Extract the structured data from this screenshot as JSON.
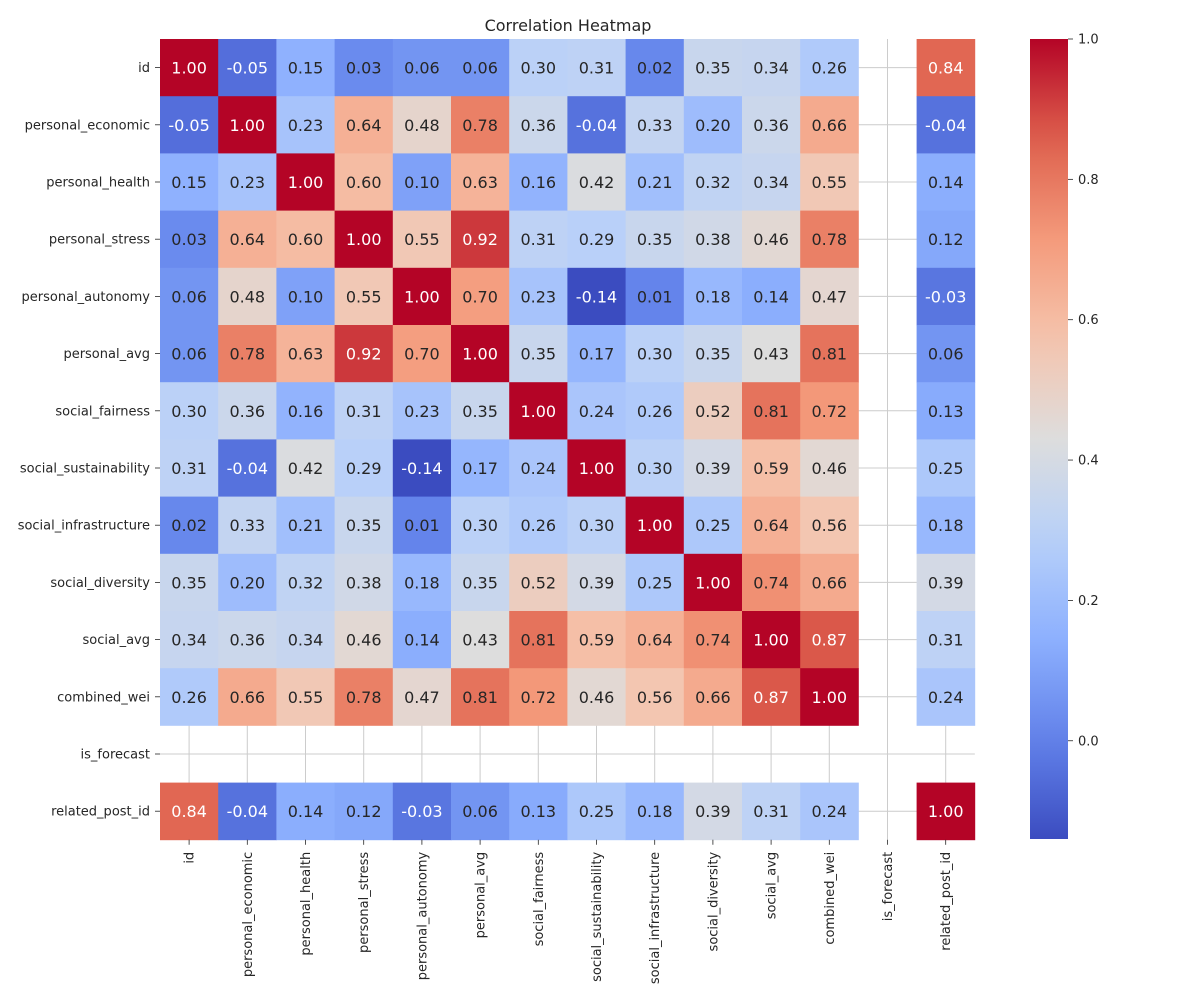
{
  "chart_data": {
    "type": "heatmap",
    "title": "Correlation Heatmap",
    "xlabel": "",
    "ylabel": "",
    "colormap": "coolwarm",
    "vmin": -0.14,
    "vmax": 1.0,
    "variables": [
      "id",
      "personal_economic",
      "personal_health",
      "personal_stress",
      "personal_autonomy",
      "personal_avg",
      "social_fairness",
      "social_sustainability",
      "social_infrastructure",
      "social_diversity",
      "social_avg",
      "combined_wei",
      "is_forecast",
      "related_post_id"
    ],
    "matrix": [
      [
        1.0,
        -0.05,
        0.15,
        0.03,
        0.06,
        0.06,
        0.3,
        0.31,
        0.02,
        0.35,
        0.34,
        0.26,
        null,
        0.84
      ],
      [
        -0.05,
        1.0,
        0.23,
        0.64,
        0.48,
        0.78,
        0.36,
        -0.04,
        0.33,
        0.2,
        0.36,
        0.66,
        null,
        -0.04
      ],
      [
        0.15,
        0.23,
        1.0,
        0.6,
        0.1,
        0.63,
        0.16,
        0.42,
        0.21,
        0.32,
        0.34,
        0.55,
        null,
        0.14
      ],
      [
        0.03,
        0.64,
        0.6,
        1.0,
        0.55,
        0.92,
        0.31,
        0.29,
        0.35,
        0.38,
        0.46,
        0.78,
        null,
        0.12
      ],
      [
        0.06,
        0.48,
        0.1,
        0.55,
        1.0,
        0.7,
        0.23,
        -0.14,
        0.01,
        0.18,
        0.14,
        0.47,
        null,
        -0.03
      ],
      [
        0.06,
        0.78,
        0.63,
        0.92,
        0.7,
        1.0,
        0.35,
        0.17,
        0.3,
        0.35,
        0.43,
        0.81,
        null,
        0.06
      ],
      [
        0.3,
        0.36,
        0.16,
        0.31,
        0.23,
        0.35,
        1.0,
        0.24,
        0.26,
        0.52,
        0.81,
        0.72,
        null,
        0.13
      ],
      [
        0.31,
        -0.04,
        0.42,
        0.29,
        -0.14,
        0.17,
        0.24,
        1.0,
        0.3,
        0.39,
        0.59,
        0.46,
        null,
        0.25
      ],
      [
        0.02,
        0.33,
        0.21,
        0.35,
        0.01,
        0.3,
        0.26,
        0.3,
        1.0,
        0.25,
        0.64,
        0.56,
        null,
        0.18
      ],
      [
        0.35,
        0.2,
        0.32,
        0.38,
        0.18,
        0.35,
        0.52,
        0.39,
        0.25,
        1.0,
        0.74,
        0.66,
        null,
        0.39
      ],
      [
        0.34,
        0.36,
        0.34,
        0.46,
        0.14,
        0.43,
        0.81,
        0.59,
        0.64,
        0.74,
        1.0,
        0.87,
        null,
        0.31
      ],
      [
        0.26,
        0.66,
        0.55,
        0.78,
        0.47,
        0.81,
        0.72,
        0.46,
        0.56,
        0.66,
        0.87,
        1.0,
        null,
        0.24
      ],
      [
        null,
        null,
        null,
        null,
        null,
        null,
        null,
        null,
        null,
        null,
        null,
        null,
        null,
        null
      ],
      [
        0.84,
        -0.04,
        0.14,
        0.12,
        -0.03,
        0.06,
        0.13,
        0.25,
        0.18,
        0.39,
        0.31,
        0.24,
        null,
        1.0
      ]
    ],
    "colorbar": {
      "ticks": [
        0.0,
        0.2,
        0.4,
        0.6,
        0.8,
        1.0
      ],
      "tick_labels": [
        "0.0",
        "0.2",
        "0.4",
        "0.6",
        "0.8",
        "1.0"
      ]
    },
    "grid": true,
    "legend": "right"
  }
}
